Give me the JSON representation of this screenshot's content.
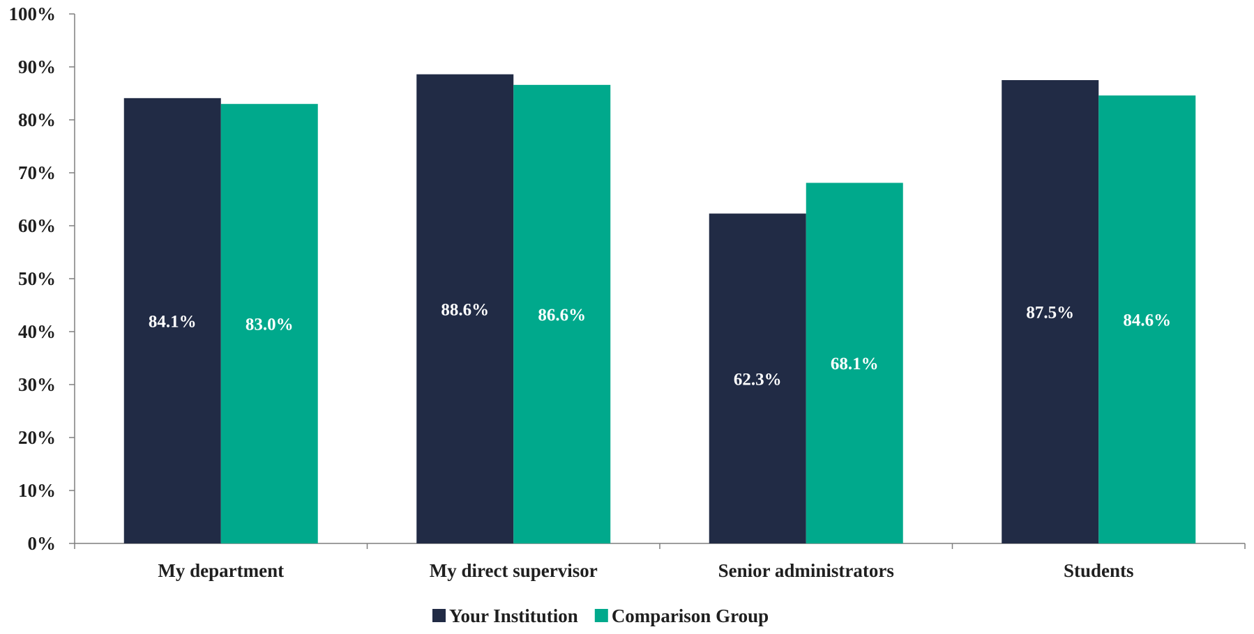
{
  "chart_data": {
    "type": "bar",
    "categories": [
      "My department",
      "My direct supervisor",
      "Senior administrators",
      "Students"
    ],
    "series": [
      {
        "name": "Your Institution",
        "color": "#212b45",
        "values": [
          84.1,
          88.6,
          62.3,
          87.5
        ],
        "labels": [
          "84.1%",
          "88.6%",
          "62.3%",
          "87.5%"
        ]
      },
      {
        "name": "Comparison Group",
        "color": "#00a98c",
        "values": [
          83.0,
          86.6,
          68.1,
          84.6
        ],
        "labels": [
          "83.0%",
          "86.6%",
          "68.1%",
          "84.6%"
        ]
      }
    ],
    "ylim": [
      0,
      100
    ],
    "yticks": [
      0,
      10,
      20,
      30,
      40,
      50,
      60,
      70,
      80,
      90,
      100
    ],
    "ytick_labels": [
      "0%",
      "10%",
      "20%",
      "30%",
      "40%",
      "50%",
      "60%",
      "70%",
      "80%",
      "90%",
      "100%"
    ],
    "grid": false,
    "legend": "bottom-center",
    "data_label_position": "middle"
  }
}
